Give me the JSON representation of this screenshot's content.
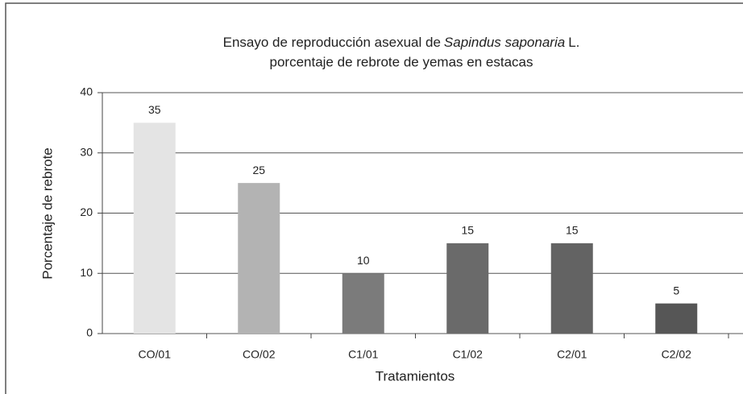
{
  "chart_data": {
    "type": "bar",
    "title": {
      "line1": [
        "Ensayo de reproducción asexual de",
        "Sapindus saponaria",
        "L."
      ],
      "line2": "porcentaje de rebrote de yemas en estacas"
    },
    "x_label": "Tratamientos",
    "y_label": "Porcentaje de rebrote",
    "categories": [
      "CO/01",
      "CO/02",
      "C1/01",
      "C1/02",
      "C2/01",
      "C2/02"
    ],
    "values": [
      35,
      25,
      10,
      15,
      15,
      5
    ],
    "colors": [
      "#e4e4e4",
      "#b3b3b3",
      "#7b7b7b",
      "#6a6a6a",
      "#636363",
      "#565656"
    ],
    "ylim": [
      0,
      40
    ],
    "yticks": [
      0,
      10,
      20,
      30,
      40
    ],
    "grid": true
  }
}
